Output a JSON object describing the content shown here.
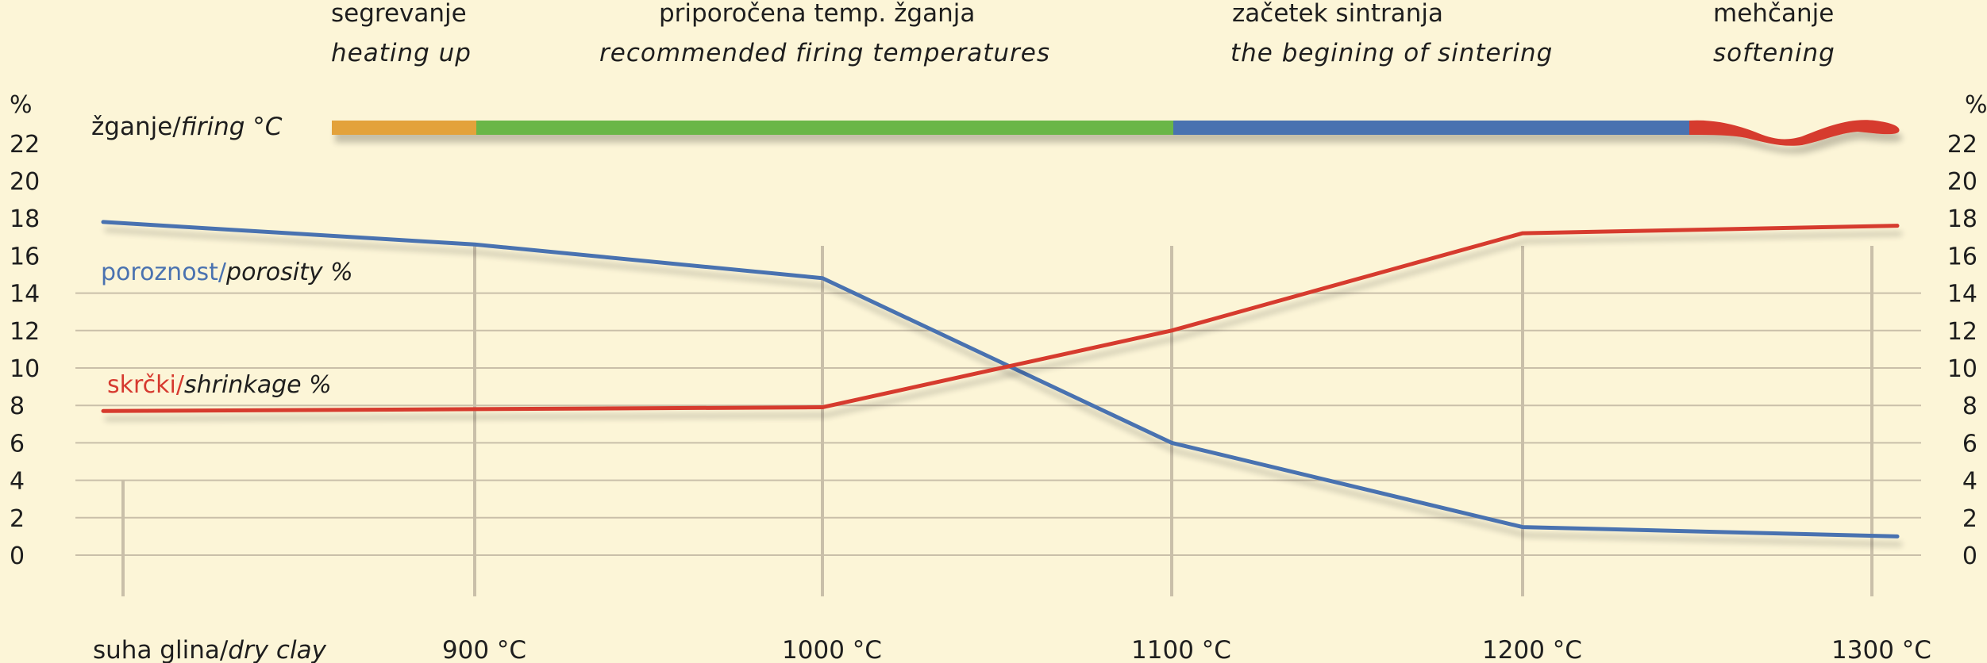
{
  "chart_data": {
    "type": "line",
    "categories": [
      "suha glina/dry clay",
      "900 °C",
      "1000 °C",
      "1100 °C",
      "1200 °C",
      "1300 °C"
    ],
    "series": [
      {
        "name": "poroznost/porosity %",
        "name_sl": "poroznost/",
        "name_en": "porosity %",
        "color": "#4a72b0",
        "values": [
          17.8,
          16.6,
          14.8,
          6.0,
          1.5,
          1.0
        ]
      },
      {
        "name": "skrčki/shrinkage %",
        "name_sl": "skrčki/",
        "name_en": "shrinkage %",
        "color": "#d63a2f",
        "values": [
          7.7,
          7.8,
          7.9,
          12.0,
          17.2,
          17.6
        ]
      }
    ],
    "ylim": [
      0,
      22
    ],
    "y_ticks": [
      "0",
      "2",
      "4",
      "6",
      "8",
      "10",
      "12",
      "14",
      "16",
      "18",
      "20",
      "22"
    ],
    "y_unit": "%",
    "x_labels": [
      {
        "sl": "suha glina/",
        "en": "dry clay"
      },
      {
        "sl": "900 °C",
        "en": ""
      },
      {
        "sl": "1000 °C",
        "en": ""
      },
      {
        "sl": "1100 °C",
        "en": ""
      },
      {
        "sl": "1200 °C",
        "en": ""
      },
      {
        "sl": "1300 °C",
        "en": ""
      }
    ],
    "grid": true
  },
  "firing": {
    "label_sl": "žganje/",
    "label_en": "firing °C",
    "segments": [
      {
        "color": "#e3a23b",
        "from": "suha glina",
        "to": "900 °C"
      },
      {
        "color": "#6ab646",
        "from": "900 °C",
        "to": "1100 °C"
      },
      {
        "color": "#4a72b0",
        "from": "1100 °C",
        "to": "1250 °C"
      },
      {
        "color": "#d63a2f",
        "from": "1250 °C",
        "to": "1300 °C"
      }
    ],
    "phases": [
      {
        "sl": "segrevanje",
        "en": "heating up"
      },
      {
        "sl": "priporočena temp. žganja",
        "en": "recommended firing temperatures"
      },
      {
        "sl": "začetek sintranja",
        "en": "the begining of sintering"
      },
      {
        "sl": "mehčanje",
        "en": "softening"
      }
    ]
  },
  "colors": {
    "background": "#fcf5d7",
    "grid": "#c9bfa9",
    "porosity": "#4a72b0",
    "shrinkage": "#d63a2f",
    "text": "#1e1e1e"
  }
}
